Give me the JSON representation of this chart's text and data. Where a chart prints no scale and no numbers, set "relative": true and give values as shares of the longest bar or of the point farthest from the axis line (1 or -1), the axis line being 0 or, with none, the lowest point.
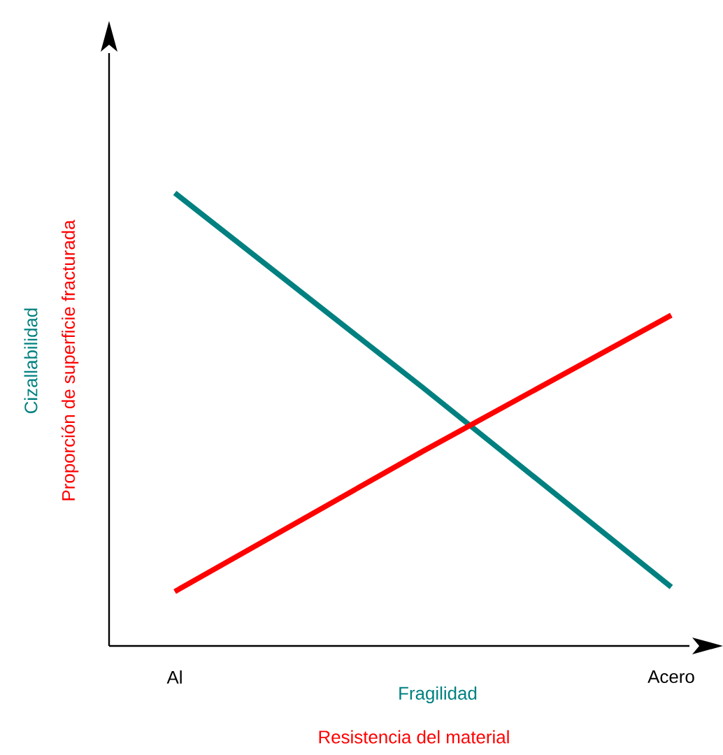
{
  "chart_data": {
    "type": "line",
    "relative": true,
    "xlabel": "Resistencia del material",
    "categories": [
      "Al",
      null,
      "Acero"
    ],
    "series": [
      {
        "name": "Cizallabilidad",
        "color": "#008080",
        "values": [
          1,
          0.57,
          0.13
        ]
      },
      {
        "name": "Proporción de superficie fracturada",
        "color": "#ff0000",
        "values": [
          0.12,
          0.43,
          0.73
        ]
      }
    ],
    "annotations": [
      "Fragilidad"
    ],
    "legend": false,
    "grid": false,
    "marker": "none",
    "line_style": "solid"
  }
}
